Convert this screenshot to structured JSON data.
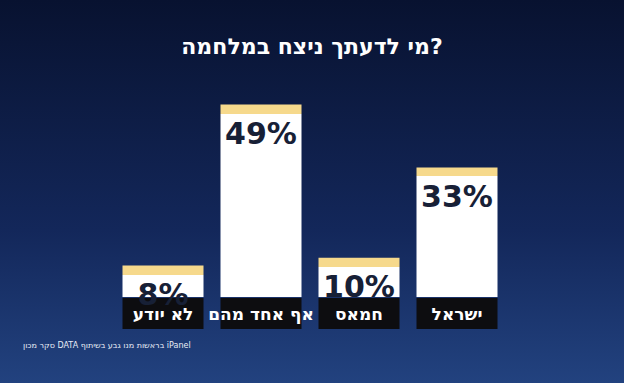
{
  "chart_data": {
    "type": "bar",
    "title": "מי לדעתך ניצח במלחמה?",
    "source": "סקר מכון DATA בראשות מנו גבע בשיתוף iPanel",
    "categories": [
      "לא יודע",
      "אף אחד מהם",
      "חמאס",
      "ישראל"
    ],
    "values": [
      8,
      49,
      10,
      33
    ],
    "value_labels": [
      "8%",
      "49%",
      "10%",
      "33%"
    ],
    "color": "#ffffff",
    "ylim": [
      0,
      55
    ],
    "grid": false,
    "data_labels": true,
    "tick_labels": "x"
  }
}
